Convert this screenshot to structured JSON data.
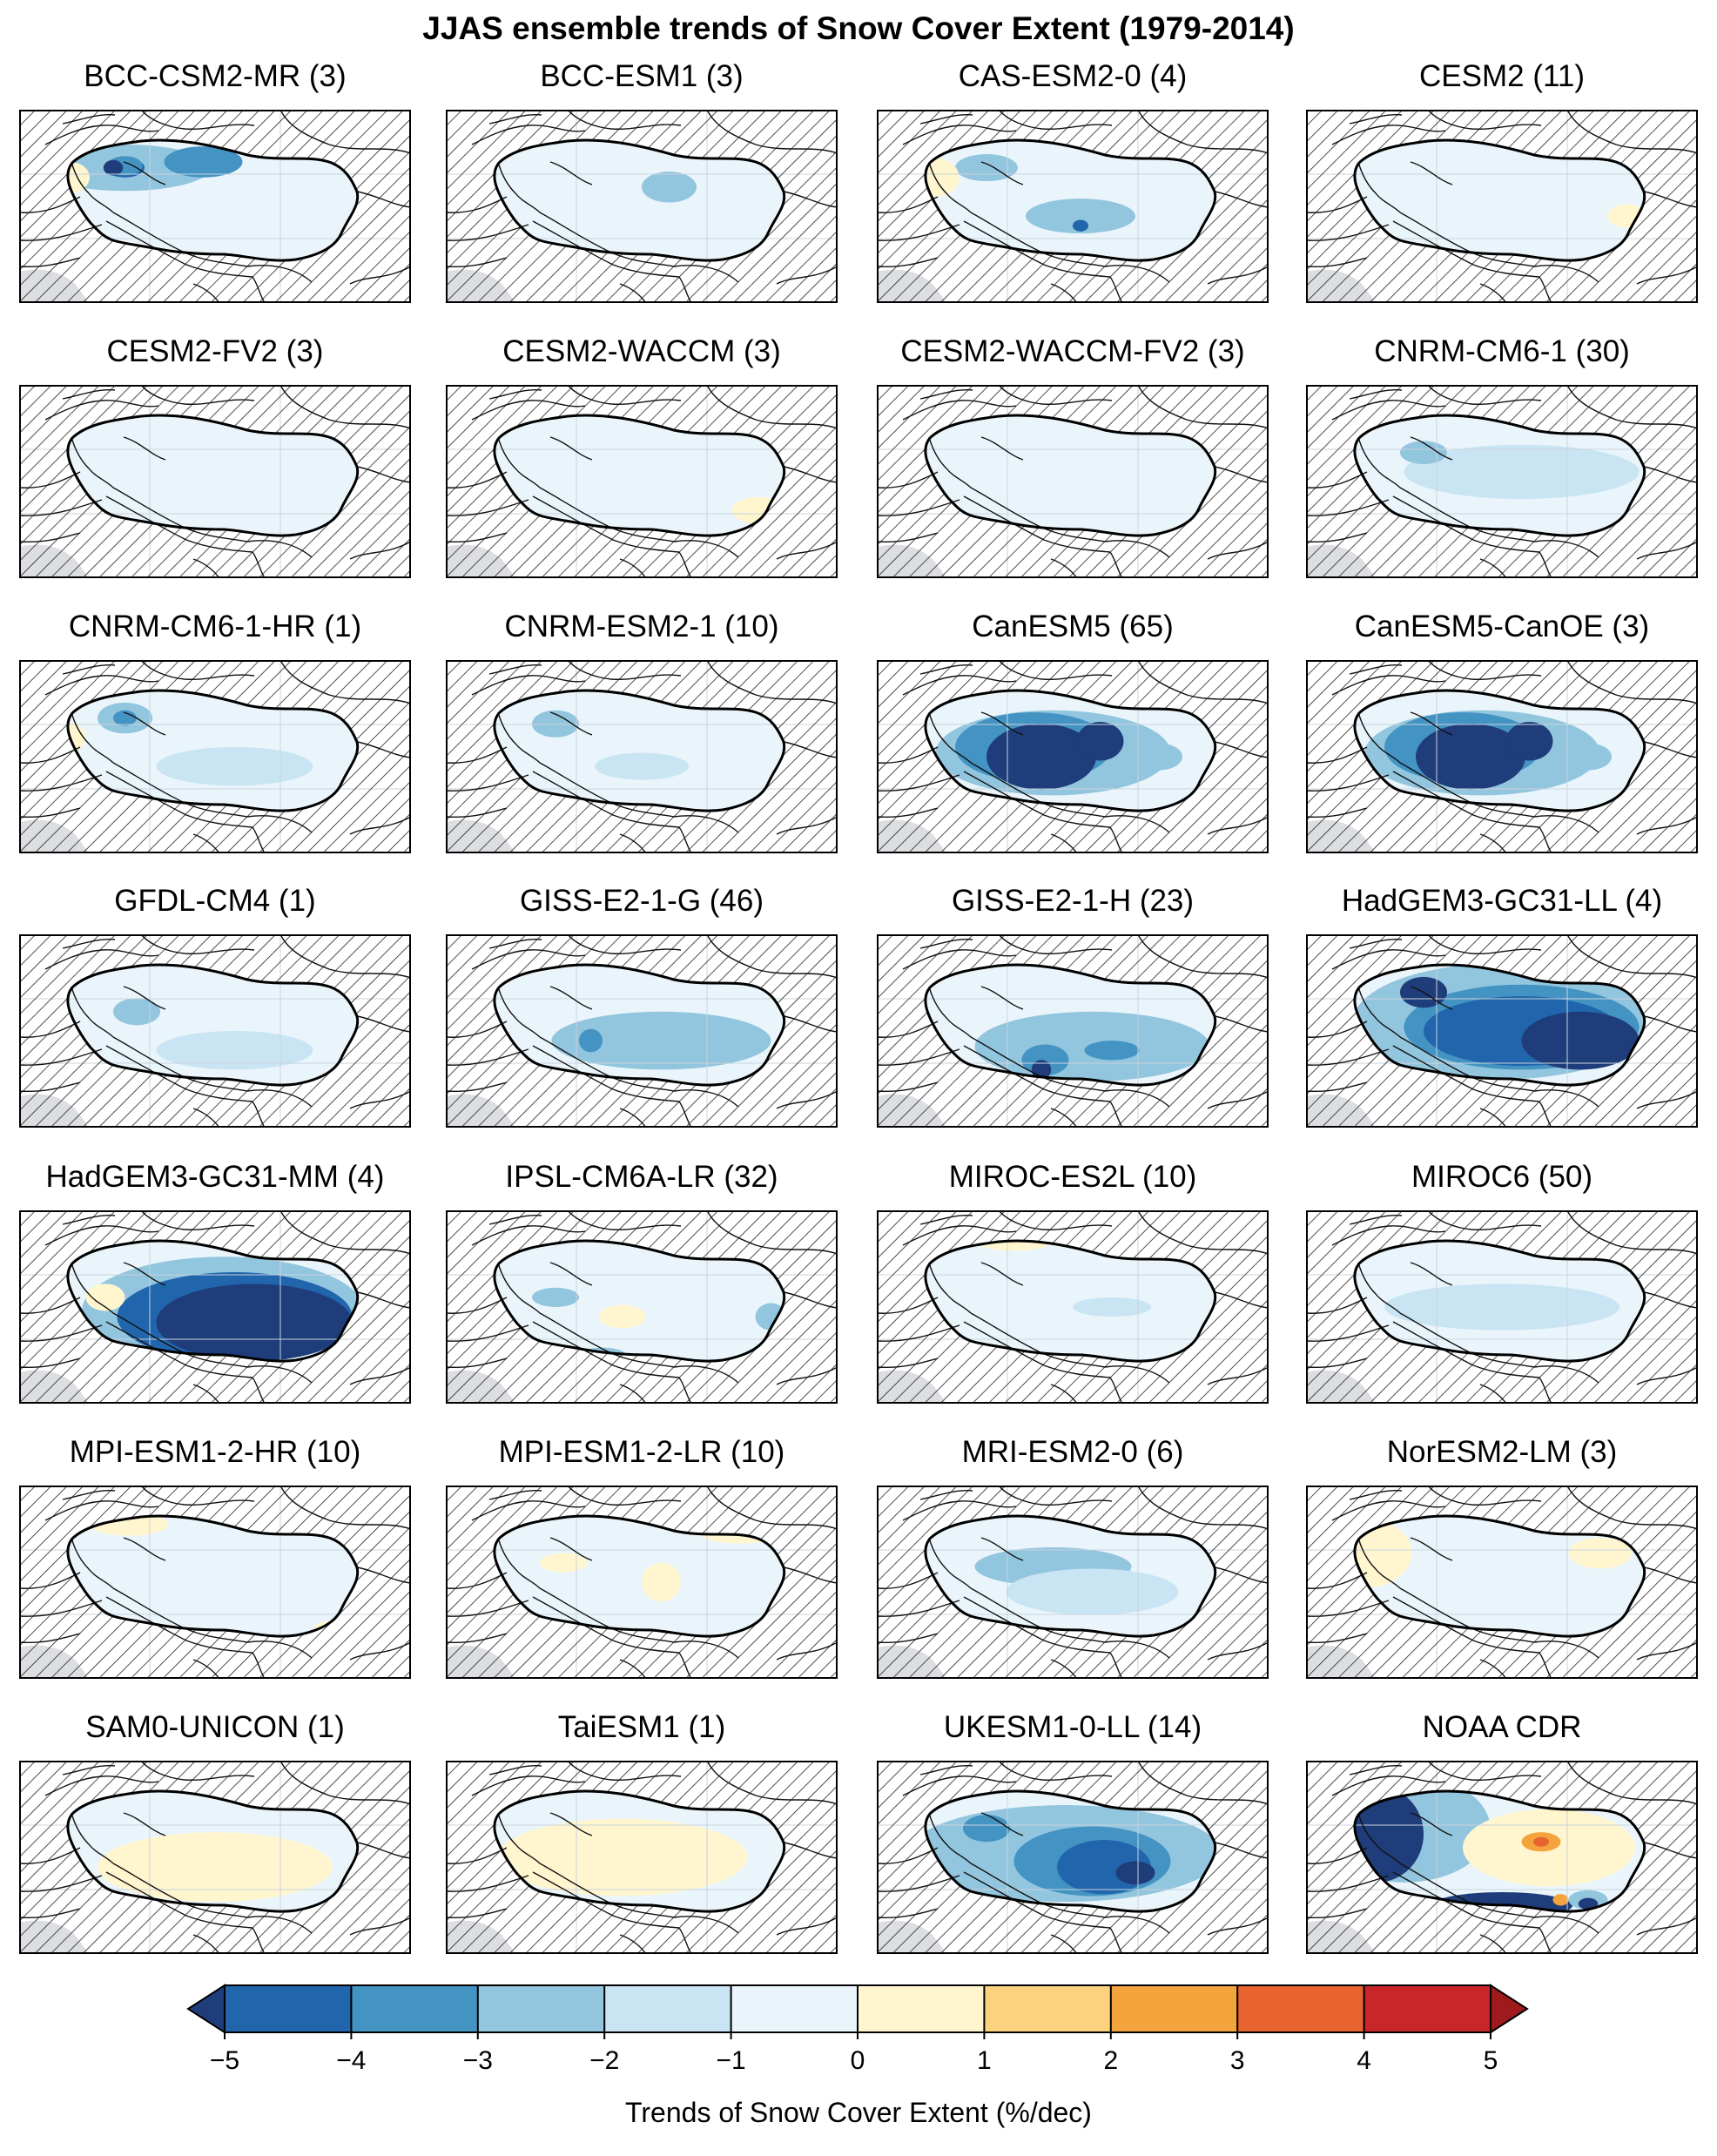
{
  "chart_data": {
    "type": "heatmap",
    "title": "JJAS ensemble trends of Snow Cover Extent (1979-2014)",
    "layout": "7 rows x 4 columns of map panels",
    "colorbar": {
      "label": "Trends of Snow Cover Extent (%/dec)",
      "ticks": [
        "−5",
        "−4",
        "−3",
        "−2",
        "−1",
        "0",
        "1",
        "2",
        "3",
        "4",
        "5"
      ],
      "levels": [
        -5,
        -4,
        -3,
        -2,
        -1,
        0,
        1,
        2,
        3,
        4,
        5
      ],
      "colors": [
        "#1f3d7a",
        "#2166ac",
        "#4393c3",
        "#92c5de",
        "#c9e4f3",
        "#eaf5fb",
        "#fff6cf",
        "#fdd27f",
        "#f4a43c",
        "#e8632d",
        "#c9262a",
        "#9e1a1d"
      ],
      "extend": "both"
    },
    "panels": [
      {
        "name": "BCC-CSM2-MR (3)",
        "features": [
          {
            "c": 3,
            "x": 0.27,
            "y": 0.3,
            "rx": 0.22,
            "ry": 0.12
          },
          {
            "c": 2,
            "x": 0.47,
            "y": 0.27,
            "rx": 0.1,
            "ry": 0.08
          },
          {
            "c": 1,
            "x": 0.27,
            "y": 0.3,
            "rx": 0.05,
            "ry": 0.05
          },
          {
            "c": 2,
            "x": 0.27,
            "y": 0.29,
            "rx": 0.045,
            "ry": 0.05
          },
          {
            "c": 0,
            "x": 0.24,
            "y": 0.3,
            "rx": 0.025,
            "ry": 0.04
          },
          {
            "c": 6,
            "x": 0.13,
            "y": 0.35,
            "rx": 0.05,
            "ry": 0.08
          },
          {
            "c": 6,
            "x": 0.58,
            "y": 0.06,
            "rx": 0.28,
            "ry": 0.06
          }
        ]
      },
      {
        "name": "BCC-ESM1 (3)",
        "features": [
          {
            "c": 3,
            "x": 0.57,
            "y": 0.4,
            "rx": 0.07,
            "ry": 0.08
          }
        ]
      },
      {
        "name": "CAS-ESM2-0 (4)",
        "features": [
          {
            "c": 3,
            "x": 0.28,
            "y": 0.3,
            "rx": 0.08,
            "ry": 0.07
          },
          {
            "c": 3,
            "x": 0.52,
            "y": 0.55,
            "rx": 0.14,
            "ry": 0.09
          },
          {
            "c": 1,
            "x": 0.52,
            "y": 0.6,
            "rx": 0.02,
            "ry": 0.03
          },
          {
            "c": 6,
            "x": 0.15,
            "y": 0.35,
            "rx": 0.06,
            "ry": 0.1
          },
          {
            "c": 6,
            "x": 0.75,
            "y": 0.1,
            "rx": 0.15,
            "ry": 0.06
          }
        ]
      },
      {
        "name": "CESM2 (11)",
        "features": [
          {
            "c": 6,
            "x": 0.55,
            "y": 0.08,
            "rx": 0.2,
            "ry": 0.05
          },
          {
            "c": 6,
            "x": 0.82,
            "y": 0.55,
            "rx": 0.05,
            "ry": 0.06
          }
        ]
      },
      {
        "name": "CESM2-FV2 (3)",
        "features": [
          {
            "c": 6,
            "x": 0.6,
            "y": 0.82,
            "rx": 0.06,
            "ry": 0.05
          },
          {
            "c": 6,
            "x": 0.85,
            "y": 0.1,
            "rx": 0.06,
            "ry": 0.05
          }
        ]
      },
      {
        "name": "CESM2-WACCM (3)",
        "features": [
          {
            "c": 6,
            "x": 0.25,
            "y": 0.1,
            "rx": 0.12,
            "ry": 0.06
          },
          {
            "c": 6,
            "x": 0.8,
            "y": 0.65,
            "rx": 0.07,
            "ry": 0.07
          }
        ]
      },
      {
        "name": "CESM2-WACCM-FV2 (3)",
        "features": []
      },
      {
        "name": "CNRM-CM6-1 (30)",
        "features": [
          {
            "c": 4,
            "x": 0.55,
            "y": 0.45,
            "rx": 0.3,
            "ry": 0.14
          },
          {
            "c": 3,
            "x": 0.3,
            "y": 0.35,
            "rx": 0.06,
            "ry": 0.06
          },
          {
            "c": 6,
            "x": 0.08,
            "y": 0.5,
            "rx": 0.05,
            "ry": 0.1
          },
          {
            "c": 6,
            "x": 0.85,
            "y": 0.2,
            "rx": 0.06,
            "ry": 0.07
          }
        ]
      },
      {
        "name": "CNRM-CM6-1-HR (1)",
        "features": [
          {
            "c": 3,
            "x": 0.27,
            "y": 0.3,
            "rx": 0.07,
            "ry": 0.08
          },
          {
            "c": 2,
            "x": 0.27,
            "y": 0.3,
            "rx": 0.03,
            "ry": 0.04
          },
          {
            "c": 4,
            "x": 0.55,
            "y": 0.55,
            "rx": 0.2,
            "ry": 0.1
          },
          {
            "c": 6,
            "x": 0.12,
            "y": 0.4,
            "rx": 0.05,
            "ry": 0.08
          }
        ]
      },
      {
        "name": "CNRM-ESM2-1 (10)",
        "features": [
          {
            "c": 3,
            "x": 0.28,
            "y": 0.33,
            "rx": 0.06,
            "ry": 0.07
          },
          {
            "c": 4,
            "x": 0.5,
            "y": 0.55,
            "rx": 0.12,
            "ry": 0.07
          },
          {
            "c": 6,
            "x": 0.85,
            "y": 0.08,
            "rx": 0.08,
            "ry": 0.05
          }
        ]
      },
      {
        "name": "CanESM5 (65)",
        "features": [
          {
            "c": 3,
            "x": 0.45,
            "y": 0.48,
            "rx": 0.3,
            "ry": 0.22
          },
          {
            "c": 2,
            "x": 0.4,
            "y": 0.45,
            "rx": 0.2,
            "ry": 0.18
          },
          {
            "c": 0,
            "x": 0.42,
            "y": 0.5,
            "rx": 0.14,
            "ry": 0.17
          },
          {
            "c": 0,
            "x": 0.57,
            "y": 0.42,
            "rx": 0.06,
            "ry": 0.1
          },
          {
            "c": 3,
            "x": 0.72,
            "y": 0.5,
            "rx": 0.06,
            "ry": 0.07
          }
        ]
      },
      {
        "name": "CanESM5-CanOE (3)",
        "features": [
          {
            "c": 3,
            "x": 0.45,
            "y": 0.48,
            "rx": 0.3,
            "ry": 0.22
          },
          {
            "c": 2,
            "x": 0.4,
            "y": 0.45,
            "rx": 0.2,
            "ry": 0.18
          },
          {
            "c": 0,
            "x": 0.42,
            "y": 0.5,
            "rx": 0.14,
            "ry": 0.17
          },
          {
            "c": 0,
            "x": 0.57,
            "y": 0.42,
            "rx": 0.06,
            "ry": 0.1
          },
          {
            "c": 3,
            "x": 0.72,
            "y": 0.5,
            "rx": 0.06,
            "ry": 0.07
          }
        ]
      },
      {
        "name": "GFDL-CM4 (1)",
        "features": [
          {
            "c": 3,
            "x": 0.3,
            "y": 0.4,
            "rx": 0.06,
            "ry": 0.07
          },
          {
            "c": 4,
            "x": 0.55,
            "y": 0.6,
            "rx": 0.2,
            "ry": 0.1
          },
          {
            "c": 6,
            "x": 0.6,
            "y": 0.85,
            "rx": 0.05,
            "ry": 0.05
          }
        ]
      },
      {
        "name": "GISS-E2-1-G (46)",
        "features": [
          {
            "c": 3,
            "x": 0.55,
            "y": 0.55,
            "rx": 0.28,
            "ry": 0.15
          },
          {
            "c": 2,
            "x": 0.37,
            "y": 0.55,
            "rx": 0.03,
            "ry": 0.06
          },
          {
            "c": 6,
            "x": 0.6,
            "y": 0.85,
            "rx": 0.05,
            "ry": 0.05
          }
        ]
      },
      {
        "name": "GISS-E2-1-H (23)",
        "features": [
          {
            "c": 3,
            "x": 0.55,
            "y": 0.58,
            "rx": 0.3,
            "ry": 0.18
          },
          {
            "c": 2,
            "x": 0.43,
            "y": 0.65,
            "rx": 0.06,
            "ry": 0.08
          },
          {
            "c": 0,
            "x": 0.42,
            "y": 0.7,
            "rx": 0.025,
            "ry": 0.05
          },
          {
            "c": 2,
            "x": 0.6,
            "y": 0.6,
            "rx": 0.07,
            "ry": 0.05
          }
        ]
      },
      {
        "name": "HadGEM3-GC31-LL (4)",
        "features": [
          {
            "c": 3,
            "x": 0.5,
            "y": 0.45,
            "rx": 0.38,
            "ry": 0.3
          },
          {
            "c": 2,
            "x": 0.55,
            "y": 0.48,
            "rx": 0.3,
            "ry": 0.22
          },
          {
            "c": 1,
            "x": 0.55,
            "y": 0.5,
            "rx": 0.25,
            "ry": 0.18
          },
          {
            "c": 0,
            "x": 0.7,
            "y": 0.55,
            "rx": 0.15,
            "ry": 0.15
          },
          {
            "c": 0,
            "x": 0.3,
            "y": 0.3,
            "rx": 0.06,
            "ry": 0.08
          }
        ]
      },
      {
        "name": "HadGEM3-GC31-MM (4)",
        "features": [
          {
            "c": 3,
            "x": 0.52,
            "y": 0.52,
            "rx": 0.36,
            "ry": 0.28
          },
          {
            "c": 1,
            "x": 0.55,
            "y": 0.55,
            "rx": 0.3,
            "ry": 0.23
          },
          {
            "c": 0,
            "x": 0.6,
            "y": 0.58,
            "rx": 0.25,
            "ry": 0.2
          },
          {
            "c": 6,
            "x": 0.22,
            "y": 0.45,
            "rx": 0.05,
            "ry": 0.07
          }
        ]
      },
      {
        "name": "IPSL-CM6A-LR (32)",
        "features": [
          {
            "c": 3,
            "x": 0.28,
            "y": 0.45,
            "rx": 0.06,
            "ry": 0.05
          },
          {
            "c": 3,
            "x": 0.83,
            "y": 0.55,
            "rx": 0.04,
            "ry": 0.07
          },
          {
            "c": 3,
            "x": 0.4,
            "y": 0.75,
            "rx": 0.06,
            "ry": 0.04
          },
          {
            "c": 6,
            "x": 0.45,
            "y": 0.55,
            "rx": 0.06,
            "ry": 0.06
          },
          {
            "c": 6,
            "x": 0.7,
            "y": 0.85,
            "rx": 0.06,
            "ry": 0.05
          }
        ]
      },
      {
        "name": "MIROC-ES2L (10)",
        "features": [
          {
            "c": 4,
            "x": 0.6,
            "y": 0.5,
            "rx": 0.1,
            "ry": 0.05
          },
          {
            "c": 6,
            "x": 0.35,
            "y": 0.15,
            "rx": 0.1,
            "ry": 0.06
          }
        ]
      },
      {
        "name": "MIROC6 (50)",
        "features": [
          {
            "c": 3,
            "x": 0.55,
            "y": 0.45,
            "rx": 0.12,
            "ry": 0.05
          },
          {
            "c": 4,
            "x": 0.5,
            "y": 0.5,
            "rx": 0.3,
            "ry": 0.12
          }
        ]
      },
      {
        "name": "MPI-ESM1-2-HR (10)",
        "features": [
          {
            "c": 6,
            "x": 0.28,
            "y": 0.2,
            "rx": 0.1,
            "ry": 0.06
          },
          {
            "c": 6,
            "x": 0.8,
            "y": 0.75,
            "rx": 0.05,
            "ry": 0.05
          }
        ]
      },
      {
        "name": "MPI-ESM1-2-LR (10)",
        "features": [
          {
            "c": 6,
            "x": 0.55,
            "y": 0.5,
            "rx": 0.05,
            "ry": 0.1
          },
          {
            "c": 6,
            "x": 0.3,
            "y": 0.4,
            "rx": 0.06,
            "ry": 0.05
          },
          {
            "c": 6,
            "x": 0.75,
            "y": 0.25,
            "rx": 0.1,
            "ry": 0.05
          }
        ]
      },
      {
        "name": "MRI-ESM2-0 (6)",
        "features": [
          {
            "c": 3,
            "x": 0.45,
            "y": 0.42,
            "rx": 0.2,
            "ry": 0.1
          },
          {
            "c": 4,
            "x": 0.55,
            "y": 0.55,
            "rx": 0.22,
            "ry": 0.12
          }
        ]
      },
      {
        "name": "NorESM2-LM (3)",
        "features": [
          {
            "c": 6,
            "x": 0.15,
            "y": 0.35,
            "rx": 0.12,
            "ry": 0.18
          },
          {
            "c": 6,
            "x": 0.75,
            "y": 0.35,
            "rx": 0.08,
            "ry": 0.08
          },
          {
            "c": 6,
            "x": 0.82,
            "y": 0.12,
            "rx": 0.08,
            "ry": 0.06
          }
        ]
      },
      {
        "name": "SAM0-UNICON (1)",
        "features": [
          {
            "c": 6,
            "x": 0.5,
            "y": 0.55,
            "rx": 0.3,
            "ry": 0.18
          }
        ]
      },
      {
        "name": "TaiESM1 (1)",
        "features": [
          {
            "c": 6,
            "x": 0.45,
            "y": 0.5,
            "rx": 0.32,
            "ry": 0.2
          }
        ]
      },
      {
        "name": "UKESM1-0-LL (14)",
        "features": [
          {
            "c": 3,
            "x": 0.48,
            "y": 0.48,
            "rx": 0.4,
            "ry": 0.25
          },
          {
            "c": 2,
            "x": 0.55,
            "y": 0.52,
            "rx": 0.2,
            "ry": 0.18
          },
          {
            "c": 1,
            "x": 0.58,
            "y": 0.55,
            "rx": 0.12,
            "ry": 0.14
          },
          {
            "c": 0,
            "x": 0.66,
            "y": 0.58,
            "rx": 0.05,
            "ry": 0.06
          },
          {
            "c": 2,
            "x": 0.28,
            "y": 0.35,
            "rx": 0.06,
            "ry": 0.07
          }
        ]
      },
      {
        "name": "NOAA CDR",
        "features": [
          {
            "c": 3,
            "x": 0.25,
            "y": 0.35,
            "rx": 0.22,
            "ry": 0.28
          },
          {
            "c": 0,
            "x": 0.18,
            "y": 0.38,
            "rx": 0.12,
            "ry": 0.25
          },
          {
            "c": 0,
            "x": 0.28,
            "y": 0.08,
            "rx": 0.15,
            "ry": 0.07
          },
          {
            "c": 0,
            "x": 0.5,
            "y": 0.75,
            "rx": 0.18,
            "ry": 0.07
          },
          {
            "c": 6,
            "x": 0.62,
            "y": 0.45,
            "rx": 0.22,
            "ry": 0.2
          },
          {
            "c": 8,
            "x": 0.6,
            "y": 0.42,
            "rx": 0.05,
            "ry": 0.05
          },
          {
            "c": 9,
            "x": 0.6,
            "y": 0.42,
            "rx": 0.02,
            "ry": 0.025
          },
          {
            "c": 8,
            "x": 0.65,
            "y": 0.72,
            "rx": 0.02,
            "ry": 0.03
          },
          {
            "c": 3,
            "x": 0.72,
            "y": 0.72,
            "rx": 0.05,
            "ry": 0.05
          },
          {
            "c": 0,
            "x": 0.72,
            "y": 0.74,
            "rx": 0.025,
            "ry": 0.03
          }
        ]
      }
    ]
  }
}
